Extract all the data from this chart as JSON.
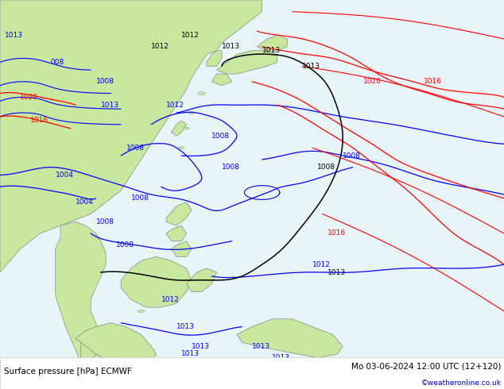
{
  "title_left": "Surface pressure [hPa] ECMWF",
  "title_right": "Mo 03-06-2024 12:00 UTC (12+120)",
  "copyright": "©weatheronline.co.uk",
  "background_color": "#f0f0f0",
  "land_color": "#c8e8a0",
  "sea_color": "#e8f4f8",
  "bottom_bar_color": "#ffffff",
  "bottom_text_color": "#000000",
  "copyright_color": "#0000cc",
  "contour_blue": "#0000ff",
  "contour_red": "#ff0000",
  "contour_black": "#000000",
  "coast_color": "#888888",
  "figsize": [
    6.34,
    4.9
  ],
  "dpi": 100,
  "font_size_labels": 6.5,
  "font_size_title": 7.5,
  "font_size_copyright": 6.5
}
